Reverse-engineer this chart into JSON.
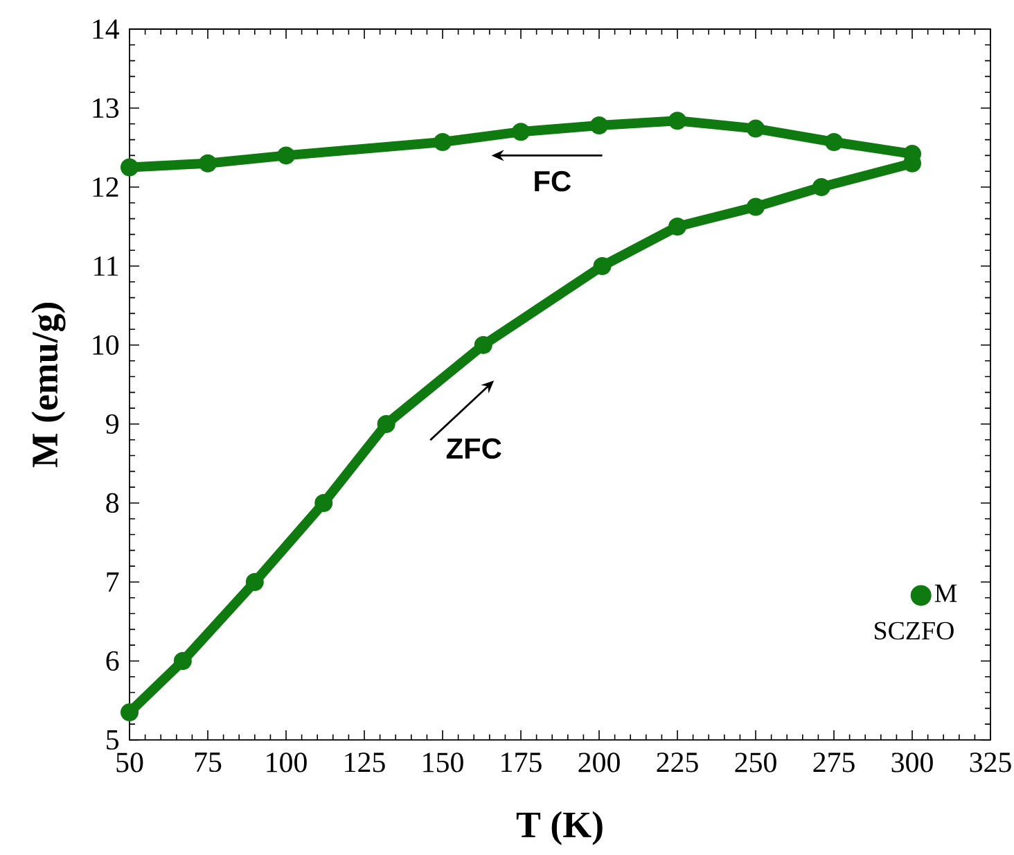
{
  "chart_data": {
    "type": "line",
    "xlabel": "T (K)",
    "ylabel": "M (emu/g)",
    "xlim": [
      50,
      325
    ],
    "xticks": [
      50,
      75,
      100,
      125,
      150,
      175,
      200,
      225,
      250,
      275,
      300,
      325
    ],
    "ylim": [
      5,
      14
    ],
    "yticks": [
      5,
      6,
      7,
      8,
      9,
      10,
      11,
      12,
      13,
      14
    ],
    "x": [
      50,
      67,
      90,
      112,
      132,
      163,
      201,
      225,
      250,
      271,
      300,
      300,
      275,
      250,
      225,
      200,
      175,
      150,
      100,
      75,
      50
    ],
    "series": [
      {
        "name": "M",
        "color": "#0f7a0f",
        "values": [
          5.35,
          6,
          7,
          8,
          9,
          10,
          11,
          11.5,
          11.75,
          12,
          12.3,
          12.42,
          12.57,
          12.74,
          12.84,
          12.78,
          12.7,
          12.57,
          12.4,
          12.3,
          12.25
        ]
      }
    ],
    "marker": "circle",
    "legend": "bottom right",
    "grid": false,
    "annotations": [
      "FC",
      "ZFC",
      "SCZFO"
    ]
  }
}
